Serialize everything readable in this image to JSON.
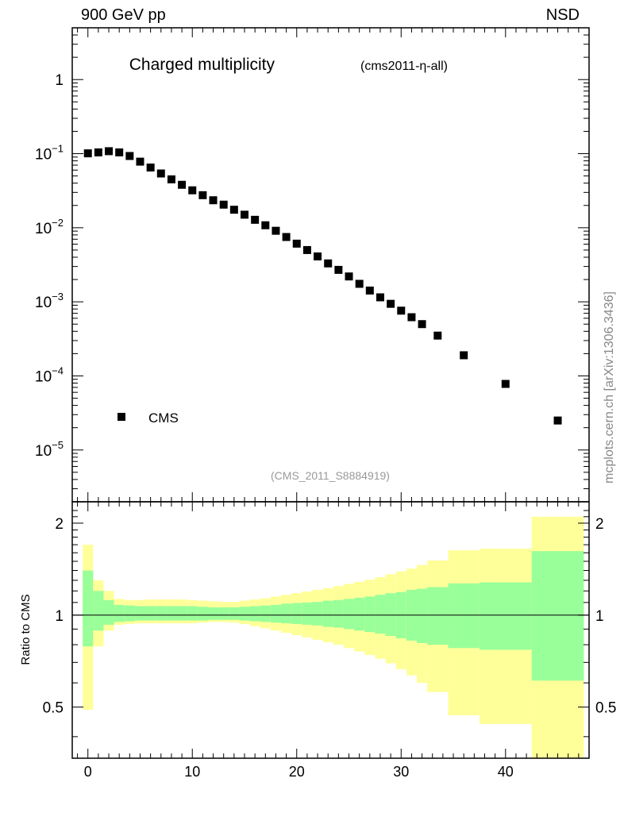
{
  "header": {
    "left": "900 GeV pp",
    "right": "NSD"
  },
  "side_label": "mcplots.cern.ch [arXiv:1306.3436]",
  "colors": {
    "inner_band": "#99ff99",
    "outer_band": "#ffff99",
    "marker": "#000000"
  },
  "chart_data": [
    {
      "type": "scatter",
      "title": "Charged multiplicity",
      "subtitle": "(cms2011-η-all)",
      "watermark": "(CMS_2011_S8884919)",
      "yscale": "log",
      "xlim": [
        -1.5,
        48
      ],
      "ylim": [
        2e-06,
        5
      ],
      "ytick_values": [
        1,
        0.1,
        0.01,
        0.001,
        0.0001,
        1e-05
      ],
      "ytick_labels": [
        {
          "base": "1",
          "exp": ""
        },
        {
          "base": "10",
          "exp": "−1"
        },
        {
          "base": "10",
          "exp": "−2"
        },
        {
          "base": "10",
          "exp": "−3"
        },
        {
          "base": "10",
          "exp": "−4"
        },
        {
          "base": "10",
          "exp": "−5"
        }
      ],
      "legend": [
        {
          "name": "CMS",
          "marker": "square"
        }
      ],
      "series": [
        {
          "name": "CMS",
          "x": [
            0,
            1,
            2,
            3,
            4,
            5,
            6,
            7,
            8,
            9,
            10,
            11,
            12,
            13,
            14,
            15,
            16,
            17,
            18,
            19,
            20,
            21,
            22,
            23,
            24,
            25,
            26,
            27,
            28,
            29,
            30,
            31,
            32,
            33.5,
            36,
            40,
            45
          ],
          "y": [
            0.101,
            0.104,
            0.108,
            0.104,
            0.093,
            0.078,
            0.065,
            0.054,
            0.045,
            0.038,
            0.032,
            0.0275,
            0.0235,
            0.0205,
            0.0175,
            0.015,
            0.0128,
            0.0108,
            0.0091,
            0.0075,
            0.0061,
            0.005,
            0.0041,
            0.0033,
            0.0027,
            0.0022,
            0.00175,
            0.00142,
            0.00115,
            0.00094,
            0.00076,
            0.00062,
            0.0005,
            0.00035,
            0.00019,
            7.8e-05,
            2.5e-05
          ]
        }
      ]
    },
    {
      "type": "area",
      "ylabel": "Ratio to CMS",
      "xlabel": "",
      "yscale": "log",
      "xlim": [
        -1.5,
        48
      ],
      "ylim": [
        0.34,
        2.35
      ],
      "xticks": [
        0,
        10,
        20,
        30,
        40
      ],
      "yticks": [
        0.5,
        1,
        2
      ],
      "ytick_labels": [
        "0.5",
        "1",
        "2"
      ],
      "bins": [
        {
          "lo": -0.5,
          "hi": 0.5,
          "inner": [
            0.79,
            1.4
          ],
          "outer": [
            0.49,
            1.7
          ]
        },
        {
          "lo": 0.5,
          "hi": 1.5,
          "inner": [
            0.89,
            1.2
          ],
          "outer": [
            0.79,
            1.3
          ]
        },
        {
          "lo": 1.5,
          "hi": 2.5,
          "inner": [
            0.93,
            1.12
          ],
          "outer": [
            0.89,
            1.2
          ]
        },
        {
          "lo": 2.5,
          "hi": 3.5,
          "inner": [
            0.95,
            1.08
          ],
          "outer": [
            0.93,
            1.13
          ]
        },
        {
          "lo": 3.5,
          "hi": 4.5,
          "inner": [
            0.955,
            1.075
          ],
          "outer": [
            0.935,
            1.12
          ]
        },
        {
          "lo": 4.5,
          "hi": 5.5,
          "inner": [
            0.96,
            1.07
          ],
          "outer": [
            0.94,
            1.12
          ]
        },
        {
          "lo": 5.5,
          "hi": 6.5,
          "inner": [
            0.96,
            1.07
          ],
          "outer": [
            0.94,
            1.125
          ]
        },
        {
          "lo": 6.5,
          "hi": 7.5,
          "inner": [
            0.96,
            1.07
          ],
          "outer": [
            0.94,
            1.125
          ]
        },
        {
          "lo": 7.5,
          "hi": 8.5,
          "inner": [
            0.96,
            1.07
          ],
          "outer": [
            0.94,
            1.125
          ]
        },
        {
          "lo": 8.5,
          "hi": 9.5,
          "inner": [
            0.96,
            1.07
          ],
          "outer": [
            0.94,
            1.125
          ]
        },
        {
          "lo": 9.5,
          "hi": 10.5,
          "inner": [
            0.96,
            1.07
          ],
          "outer": [
            0.94,
            1.12
          ]
        },
        {
          "lo": 10.5,
          "hi": 11.5,
          "inner": [
            0.96,
            1.065
          ],
          "outer": [
            0.945,
            1.115
          ]
        },
        {
          "lo": 11.5,
          "hi": 12.5,
          "inner": [
            0.965,
            1.06
          ],
          "outer": [
            0.95,
            1.11
          ]
        },
        {
          "lo": 12.5,
          "hi": 13.5,
          "inner": [
            0.965,
            1.06
          ],
          "outer": [
            0.95,
            1.105
          ]
        },
        {
          "lo": 13.5,
          "hi": 14.5,
          "inner": [
            0.965,
            1.06
          ],
          "outer": [
            0.945,
            1.105
          ]
        },
        {
          "lo": 14.5,
          "hi": 15.5,
          "inner": [
            0.96,
            1.065
          ],
          "outer": [
            0.935,
            1.115
          ]
        },
        {
          "lo": 15.5,
          "hi": 16.5,
          "inner": [
            0.955,
            1.07
          ],
          "outer": [
            0.92,
            1.125
          ]
        },
        {
          "lo": 16.5,
          "hi": 17.5,
          "inner": [
            0.95,
            1.075
          ],
          "outer": [
            0.905,
            1.135
          ]
        },
        {
          "lo": 17.5,
          "hi": 18.5,
          "inner": [
            0.945,
            1.08
          ],
          "outer": [
            0.89,
            1.15
          ]
        },
        {
          "lo": 18.5,
          "hi": 19.5,
          "inner": [
            0.94,
            1.09
          ],
          "outer": [
            0.875,
            1.165
          ]
        },
        {
          "lo": 19.5,
          "hi": 20.5,
          "inner": [
            0.935,
            1.095
          ],
          "outer": [
            0.86,
            1.18
          ]
        },
        {
          "lo": 20.5,
          "hi": 21.5,
          "inner": [
            0.93,
            1.1
          ],
          "outer": [
            0.845,
            1.195
          ]
        },
        {
          "lo": 21.5,
          "hi": 22.5,
          "inner": [
            0.925,
            1.105
          ],
          "outer": [
            0.83,
            1.21
          ]
        },
        {
          "lo": 22.5,
          "hi": 23.5,
          "inner": [
            0.915,
            1.115
          ],
          "outer": [
            0.815,
            1.225
          ]
        },
        {
          "lo": 23.5,
          "hi": 24.5,
          "inner": [
            0.91,
            1.12
          ],
          "outer": [
            0.8,
            1.245
          ]
        },
        {
          "lo": 24.5,
          "hi": 25.5,
          "inner": [
            0.9,
            1.13
          ],
          "outer": [
            0.78,
            1.265
          ]
        },
        {
          "lo": 25.5,
          "hi": 26.5,
          "inner": [
            0.89,
            1.14
          ],
          "outer": [
            0.76,
            1.285
          ]
        },
        {
          "lo": 26.5,
          "hi": 27.5,
          "inner": [
            0.88,
            1.15
          ],
          "outer": [
            0.74,
            1.305
          ]
        },
        {
          "lo": 27.5,
          "hi": 28.5,
          "inner": [
            0.87,
            1.165
          ],
          "outer": [
            0.72,
            1.33
          ]
        },
        {
          "lo": 28.5,
          "hi": 29.5,
          "inner": [
            0.855,
            1.18
          ],
          "outer": [
            0.695,
            1.36
          ]
        },
        {
          "lo": 29.5,
          "hi": 30.5,
          "inner": [
            0.84,
            1.19
          ],
          "outer": [
            0.665,
            1.39
          ]
        },
        {
          "lo": 30.5,
          "hi": 31.5,
          "inner": [
            0.825,
            1.21
          ],
          "outer": [
            0.635,
            1.42
          ]
        },
        {
          "lo": 31.5,
          "hi": 32.5,
          "inner": [
            0.81,
            1.22
          ],
          "outer": [
            0.6,
            1.46
          ]
        },
        {
          "lo": 32.5,
          "hi": 34.5,
          "inner": [
            0.8,
            1.235
          ],
          "outer": [
            0.56,
            1.51
          ]
        },
        {
          "lo": 34.5,
          "hi": 37.5,
          "inner": [
            0.78,
            1.27
          ],
          "outer": [
            0.47,
            1.63
          ]
        },
        {
          "lo": 37.5,
          "hi": 42.5,
          "inner": [
            0.77,
            1.28
          ],
          "outer": [
            0.44,
            1.65
          ]
        },
        {
          "lo": 42.5,
          "hi": 47.5,
          "inner": [
            0.61,
            1.62
          ],
          "outer": [
            0.34,
            2.1
          ]
        }
      ],
      "reference_line": 1
    }
  ]
}
